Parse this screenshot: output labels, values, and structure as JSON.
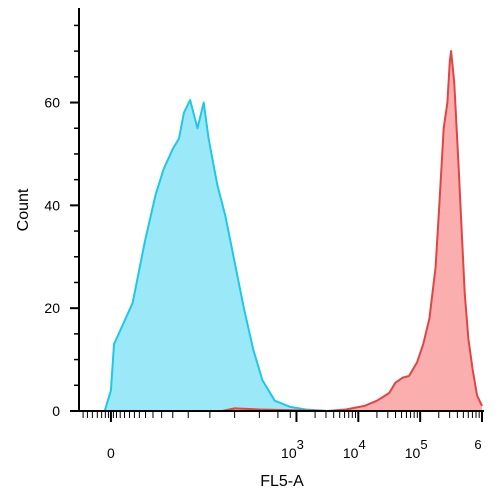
{
  "chart_data": {
    "type": "area",
    "title": "",
    "xlabel": "FL5-A",
    "ylabel": "Count",
    "x_scale": "biexponential",
    "xlim": [
      -0.5,
      6
    ],
    "ylim": [
      0,
      78
    ],
    "grid": false,
    "legend": "none",
    "x_tick_labels": [
      {
        "value": 0,
        "base": "0",
        "exp": ""
      },
      {
        "value": 3,
        "base": "10",
        "exp": "3"
      },
      {
        "value": 4,
        "base": "10",
        "exp": "4"
      },
      {
        "value": 5,
        "base": "10",
        "exp": "5"
      },
      {
        "value": 6,
        "base": "",
        "exp": "6"
      }
    ],
    "y_ticks": [
      0,
      20,
      40,
      60
    ],
    "series": [
      {
        "color": "#1fc8e8",
        "fill": "#8fe6f7",
        "points": [
          [
            -0.5,
            0
          ],
          [
            -0.1,
            0
          ],
          [
            0.0,
            4
          ],
          [
            0.05,
            13
          ],
          [
            0.2,
            17
          ],
          [
            0.35,
            21
          ],
          [
            0.55,
            33
          ],
          [
            0.72,
            42
          ],
          [
            0.85,
            47
          ],
          [
            1.0,
            51
          ],
          [
            1.1,
            53
          ],
          [
            1.18,
            58
          ],
          [
            1.28,
            60.5
          ],
          [
            1.4,
            55
          ],
          [
            1.5,
            60
          ],
          [
            1.58,
            53
          ],
          [
            1.72,
            44
          ],
          [
            1.85,
            38
          ],
          [
            2.0,
            29
          ],
          [
            2.15,
            20
          ],
          [
            2.3,
            12
          ],
          [
            2.45,
            6
          ],
          [
            2.65,
            2
          ],
          [
            2.9,
            0.8
          ],
          [
            3.15,
            0.3
          ],
          [
            3.5,
            0
          ],
          [
            6,
            0
          ]
        ]
      },
      {
        "color": "#e04545",
        "fill": "#f9a5a5",
        "points": [
          [
            -0.5,
            0
          ],
          [
            1.8,
            0
          ],
          [
            2.0,
            0.5
          ],
          [
            2.4,
            0.3
          ],
          [
            3.5,
            0
          ],
          [
            3.8,
            0.3
          ],
          [
            4.1,
            1
          ],
          [
            4.3,
            2
          ],
          [
            4.5,
            3.5
          ],
          [
            4.6,
            5.5
          ],
          [
            4.72,
            6.5
          ],
          [
            4.82,
            6.8
          ],
          [
            4.95,
            9.5
          ],
          [
            5.05,
            13
          ],
          [
            5.15,
            18
          ],
          [
            5.25,
            28
          ],
          [
            5.32,
            42
          ],
          [
            5.38,
            55
          ],
          [
            5.44,
            60
          ],
          [
            5.48,
            68
          ],
          [
            5.5,
            70
          ],
          [
            5.55,
            64
          ],
          [
            5.62,
            48
          ],
          [
            5.68,
            33
          ],
          [
            5.72,
            23
          ],
          [
            5.78,
            14
          ],
          [
            5.85,
            8
          ],
          [
            5.92,
            3
          ],
          [
            6.0,
            1
          ]
        ]
      }
    ]
  }
}
